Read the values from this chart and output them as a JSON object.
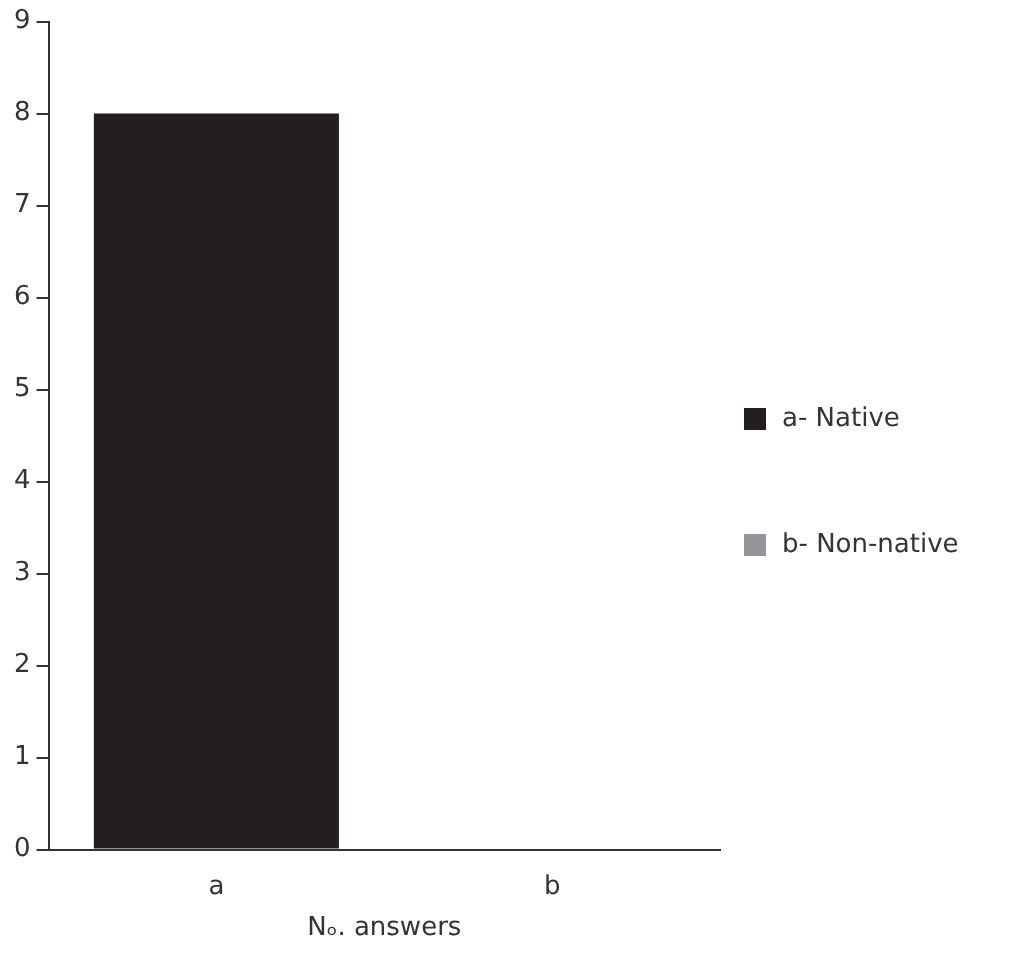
{
  "chart_data": {
    "type": "bar",
    "categories": [
      "a",
      "b"
    ],
    "xlabel": "Nₒ. answers",
    "stacked": true,
    "legend": "right",
    "grid": false,
    "ylim": [
      0,
      9
    ],
    "yticks": [
      0,
      1,
      2,
      3,
      4,
      5,
      6,
      7,
      8,
      9
    ],
    "series": [
      {
        "name": "a- Native",
        "color": "#231f20",
        "values": [
          8,
          null
        ]
      },
      {
        "name": "b- Non-native",
        "color": "#939598",
        "values": [
          null,
          0
        ]
      }
    ]
  }
}
